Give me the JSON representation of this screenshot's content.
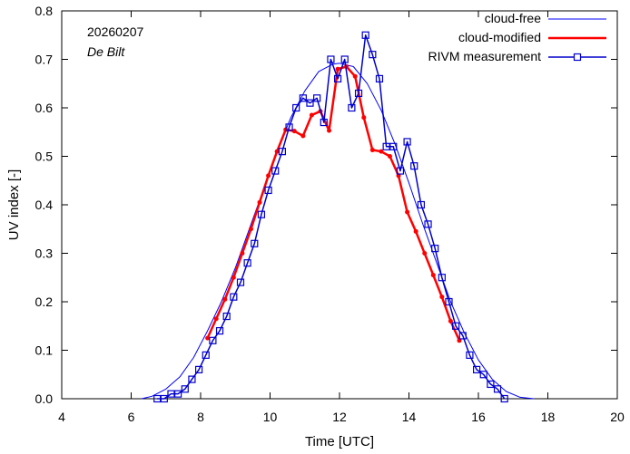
{
  "chart_data": {
    "type": "line",
    "title": "",
    "xlabel": "Time  [UTC]",
    "ylabel": "UV index  [-]",
    "xlim": [
      4,
      20
    ],
    "ylim": [
      0,
      0.8
    ],
    "xticks": [
      4,
      6,
      8,
      10,
      12,
      14,
      16,
      18,
      20
    ],
    "yticks": [
      0.0,
      0.1,
      0.2,
      0.3,
      0.4,
      0.5,
      0.6,
      0.7,
      0.8
    ],
    "ytick_labels": [
      "0.0",
      "0.1",
      "0.2",
      "0.3",
      "0.4",
      "0.5",
      "0.6",
      "0.7",
      "0.8"
    ],
    "annotations": {
      "date": "20260207",
      "station": "De Bilt"
    },
    "legend_position": "top-right",
    "series": [
      {
        "name": "cloud-free",
        "color": "#0000ff",
        "style": "thin-line",
        "x": [
          6.3,
          6.6,
          7.0,
          7.4,
          7.8,
          8.2,
          8.6,
          9.0,
          9.4,
          9.8,
          10.2,
          10.6,
          11.0,
          11.4,
          11.8,
          12.0,
          12.4,
          12.8,
          13.2,
          13.6,
          14.0,
          14.4,
          14.8,
          15.2,
          15.6,
          16.0,
          16.4,
          16.8,
          17.2,
          17.6
        ],
        "values": [
          0.0,
          0.005,
          0.02,
          0.045,
          0.085,
          0.14,
          0.2,
          0.27,
          0.35,
          0.43,
          0.51,
          0.58,
          0.635,
          0.675,
          0.69,
          0.692,
          0.685,
          0.65,
          0.595,
          0.525,
          0.445,
          0.36,
          0.28,
          0.2,
          0.135,
          0.08,
          0.04,
          0.015,
          0.003,
          0.0
        ]
      },
      {
        "name": "cloud-modified",
        "color": "#ff0000",
        "style": "thick-line-dots",
        "x": [
          8.2,
          8.45,
          8.7,
          8.95,
          9.2,
          9.45,
          9.7,
          9.95,
          10.2,
          10.45,
          10.7,
          10.95,
          11.2,
          11.45,
          11.7,
          11.95,
          12.2,
          12.45,
          12.7,
          12.95,
          13.2,
          13.45,
          13.7,
          13.95,
          14.2,
          14.45,
          14.7,
          14.95,
          15.2,
          15.45
        ],
        "values": [
          0.125,
          0.165,
          0.205,
          0.25,
          0.3,
          0.35,
          0.405,
          0.46,
          0.51,
          0.555,
          0.552,
          0.542,
          0.585,
          0.593,
          0.553,
          0.68,
          0.685,
          0.665,
          0.58,
          0.513,
          0.51,
          0.5,
          0.46,
          0.385,
          0.345,
          0.3,
          0.255,
          0.21,
          0.16,
          0.12
        ]
      },
      {
        "name": "RIVM measurement",
        "color": "#0000cc",
        "style": "line-squares",
        "x": [
          6.75,
          6.95,
          7.15,
          7.35,
          7.55,
          7.75,
          7.95,
          8.15,
          8.35,
          8.55,
          8.75,
          8.95,
          9.15,
          9.35,
          9.55,
          9.75,
          9.95,
          10.15,
          10.35,
          10.55,
          10.75,
          10.95,
          11.15,
          11.35,
          11.55,
          11.75,
          11.95,
          12.15,
          12.35,
          12.55,
          12.75,
          12.95,
          13.15,
          13.35,
          13.55,
          13.75,
          13.95,
          14.15,
          14.35,
          14.55,
          14.75,
          14.95,
          15.15,
          15.35,
          15.55,
          15.75,
          15.95,
          16.15,
          16.35,
          16.55,
          16.75
        ],
        "values": [
          0.0,
          0.0,
          0.01,
          0.01,
          0.02,
          0.04,
          0.06,
          0.09,
          0.12,
          0.14,
          0.17,
          0.21,
          0.24,
          0.28,
          0.32,
          0.38,
          0.43,
          0.47,
          0.51,
          0.56,
          0.6,
          0.62,
          0.61,
          0.62,
          0.57,
          0.7,
          0.66,
          0.7,
          0.6,
          0.63,
          0.75,
          0.71,
          0.66,
          0.52,
          0.52,
          0.47,
          0.53,
          0.48,
          0.4,
          0.36,
          0.31,
          0.25,
          0.2,
          0.15,
          0.13,
          0.09,
          0.06,
          0.05,
          0.03,
          0.02,
          0.0
        ]
      }
    ]
  }
}
